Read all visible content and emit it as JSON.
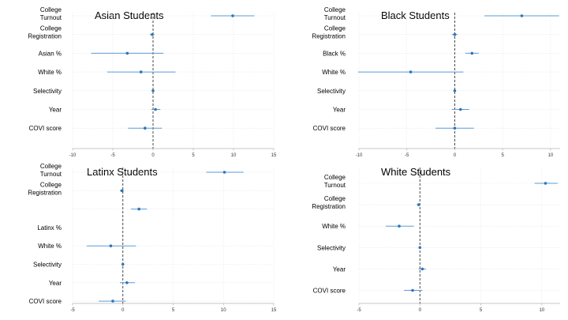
{
  "chart_data": [
    {
      "type": "scatter",
      "subtype": "coefficient-plot",
      "title": "Asian Students",
      "xlim": [
        -10,
        15
      ],
      "xticks": [
        "-10",
        "-5",
        "0",
        "5",
        "10",
        "15"
      ],
      "reference_line": 0,
      "rows": [
        {
          "label": [
            "College",
            "Turnout"
          ],
          "estimate": 9.9,
          "ci": [
            7.2,
            12.6
          ]
        },
        {
          "label": [
            "College",
            "Registration"
          ],
          "estimate": -0.1,
          "ci": [
            -0.4,
            0.2
          ]
        },
        {
          "label": [
            "Asian %"
          ],
          "estimate": -3.2,
          "ci": [
            -7.7,
            1.3
          ]
        },
        {
          "label": [
            "White %"
          ],
          "estimate": -1.5,
          "ci": [
            -5.7,
            2.8
          ]
        },
        {
          "label": [
            "Selectivity"
          ],
          "estimate": 0.0,
          "ci": [
            -0.1,
            0.1
          ]
        },
        {
          "label": [
            "Year"
          ],
          "estimate": 0.3,
          "ci": [
            -0.2,
            0.9
          ]
        },
        {
          "label": [
            "COVI score"
          ],
          "estimate": -1.0,
          "ci": [
            -3.1,
            1.1
          ]
        }
      ]
    },
    {
      "type": "scatter",
      "subtype": "coefficient-plot",
      "title": "Black Students",
      "xlim": [
        -10,
        11
      ],
      "xticks": [
        "-10",
        "-5",
        "0",
        "5",
        "10"
      ],
      "reference_line": 0,
      "rows": [
        {
          "label": [
            "College",
            "Turnout"
          ],
          "estimate": 7.0,
          "ci": [
            3.1,
            10.9
          ]
        },
        {
          "label": [
            "College",
            "Registration"
          ],
          "estimate": 0.0,
          "ci": [
            -0.3,
            0.3
          ]
        },
        {
          "label": [
            "Black %"
          ],
          "estimate": 1.8,
          "ci": [
            1.1,
            2.5
          ]
        },
        {
          "label": [
            "White %"
          ],
          "estimate": -4.6,
          "ci": [
            -10.1,
            0.9
          ]
        },
        {
          "label": [
            "Selectivity"
          ],
          "estimate": 0.0,
          "ci": [
            -0.1,
            0.1
          ]
        },
        {
          "label": [
            "Year"
          ],
          "estimate": 0.6,
          "ci": [
            -0.3,
            1.5
          ]
        },
        {
          "label": [
            "COVI score"
          ],
          "estimate": 0.0,
          "ci": [
            -2.0,
            2.0
          ]
        }
      ]
    },
    {
      "type": "scatter",
      "subtype": "coefficient-plot",
      "title": "Latinx Students",
      "xlim": [
        -5,
        15
      ],
      "xticks": [
        "-5",
        "0",
        "5",
        "10",
        "15"
      ],
      "reference_line": 0,
      "rows": [
        {
          "label": [
            "College",
            "Turnout"
          ],
          "estimate": 10.1,
          "ci": [
            8.3,
            12.0
          ]
        },
        {
          "label": [
            "College",
            "Registration"
          ],
          "estimate": -0.1,
          "ci": [
            -0.3,
            0.1
          ]
        },
        {
          "label": [
            ""
          ],
          "estimate": 1.6,
          "ci": [
            0.8,
            2.4
          ]
        },
        {
          "label": [
            "Latinx %"
          ],
          "estimate": null,
          "ci": null
        },
        {
          "label": [
            "White %"
          ],
          "estimate": -1.2,
          "ci": [
            -3.6,
            1.3
          ]
        },
        {
          "label": [
            "Selectivity"
          ],
          "estimate": 0.0,
          "ci": [
            -0.1,
            0.1
          ]
        },
        {
          "label": [
            "Year"
          ],
          "estimate": 0.4,
          "ci": [
            -0.3,
            1.2
          ]
        },
        {
          "label": [
            "COVI score"
          ],
          "estimate": -1.0,
          "ci": [
            -2.4,
            0.3
          ]
        }
      ]
    },
    {
      "type": "scatter",
      "subtype": "coefficient-plot",
      "title": "White Students",
      "xlim": [
        -5,
        11.5
      ],
      "xticks": [
        "-5",
        "0",
        "5",
        "10"
      ],
      "reference_line": 0,
      "rows": [
        {
          "label": [
            "College",
            "Turnout"
          ],
          "estimate": 10.3,
          "ci": [
            9.4,
            11.3
          ]
        },
        {
          "label": [
            "College",
            "Registration"
          ],
          "estimate": -0.1,
          "ci": [
            -0.25,
            0.05
          ]
        },
        {
          "label": [
            "White %"
          ],
          "estimate": -1.7,
          "ci": [
            -2.8,
            -0.5
          ]
        },
        {
          "label": [
            "Selectivity"
          ],
          "estimate": 0.0,
          "ci": [
            -0.05,
            0.05
          ]
        },
        {
          "label": [
            "Year"
          ],
          "estimate": 0.2,
          "ci": [
            -0.1,
            0.5
          ]
        },
        {
          "label": [
            "COVI score"
          ],
          "estimate": -0.6,
          "ci": [
            -1.3,
            0.2
          ]
        }
      ]
    }
  ]
}
